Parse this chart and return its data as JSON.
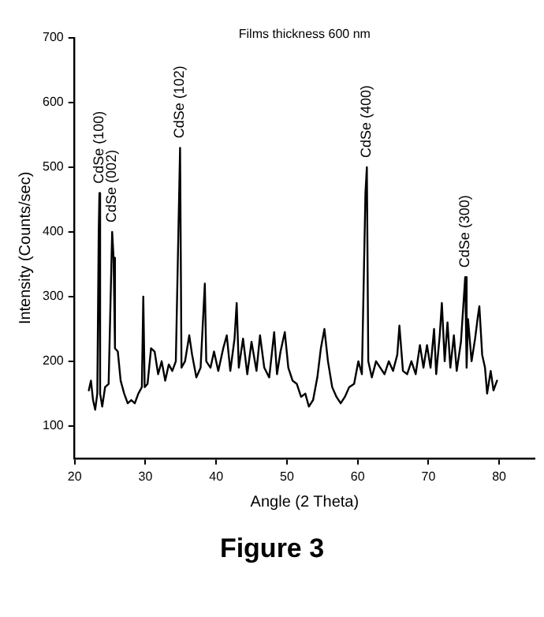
{
  "chart_data": {
    "type": "line",
    "title": "Films thickness 600 nm",
    "xlabel": "Angle (2 Theta)",
    "ylabel": "Intensity (Counts/sec)",
    "series": [
      {
        "color": "#000000",
        "x": [
          22,
          22.3,
          22.6,
          22.9,
          23.2,
          23.4,
          23.5,
          23.6,
          23.9,
          24.3,
          24.8,
          25.3,
          25.5,
          25.7,
          26.1,
          26.5,
          27,
          27.5,
          28,
          28.5,
          29,
          29.5,
          29.7,
          29.9,
          30.3,
          30.8,
          31.3,
          31.8,
          32.3,
          32.8,
          33.3,
          33.8,
          34.3,
          34.9,
          35.1,
          35.6,
          36.2,
          36.6,
          37.2,
          37.8,
          38.4,
          38.6,
          39.2,
          39.7,
          40.3,
          41,
          41.5,
          42,
          42.6,
          42.9,
          43.2,
          43.8,
          44.4,
          45,
          45.7,
          46.2,
          46.8,
          47.5,
          48.2,
          48.6,
          49.1,
          49.7,
          50.2,
          50.8,
          51.4,
          52,
          52.6,
          53.1,
          53.7,
          54.3,
          54.8,
          55.3,
          55.8,
          56.4,
          57,
          57.6,
          58.2,
          58.8,
          59.5,
          60.1,
          60.6,
          61.1,
          61.3,
          61.5,
          62,
          62.6,
          63.2,
          63.8,
          64.4,
          65,
          65.6,
          65.9,
          66.4,
          67,
          67.6,
          68.2,
          68.8,
          69.3,
          69.8,
          70.3,
          70.8,
          71.1,
          71.6,
          71.9,
          72.3,
          72.7,
          73.1,
          73.6,
          74,
          74.6,
          75.2,
          75.4,
          75.6,
          76.1,
          76.6,
          77,
          77.2,
          77.6,
          78,
          78.3,
          78.8,
          79.2,
          79.7
        ],
        "values": [
          155,
          170,
          140,
          125,
          150,
          400,
          460,
          150,
          130,
          160,
          165,
          400,
          360,
          220,
          215,
          170,
          150,
          135,
          140,
          135,
          150,
          160,
          300,
          160,
          165,
          220,
          215,
          180,
          200,
          170,
          195,
          185,
          200,
          530,
          190,
          200,
          240,
          210,
          175,
          190,
          320,
          200,
          190,
          215,
          185,
          220,
          240,
          185,
          235,
          290,
          190,
          235,
          180,
          230,
          185,
          240,
          190,
          175,
          245,
          180,
          215,
          245,
          190,
          170,
          165,
          145,
          150,
          130,
          140,
          175,
          220,
          250,
          200,
          160,
          145,
          135,
          145,
          160,
          165,
          200,
          180,
          460,
          500,
          200,
          175,
          200,
          190,
          180,
          200,
          185,
          210,
          255,
          185,
          180,
          200,
          180,
          225,
          190,
          225,
          190,
          250,
          180,
          240,
          290,
          200,
          260,
          190,
          240,
          185,
          230,
          330,
          190,
          265,
          200,
          235,
          270,
          285,
          210,
          190,
          150,
          185,
          155,
          170
        ]
      }
    ],
    "xlim": [
      20,
      85
    ],
    "xticks": [
      20,
      30,
      40,
      50,
      60,
      70,
      80
    ],
    "ylim": [
      50,
      700
    ],
    "yticks": [
      100,
      200,
      300,
      400,
      500,
      600,
      700
    ],
    "grid": false,
    "legend": false,
    "marker": "none",
    "line_style": "solid",
    "annotations": [
      {
        "text": "CdSe (100)",
        "x": 23.5,
        "y": 460
      },
      {
        "text": "CdSe (002)",
        "x": 25.3,
        "y": 400
      },
      {
        "text": "CdSe (102)",
        "x": 34.9,
        "y": 530
      },
      {
        "text": "CdSe (400)",
        "x": 61.3,
        "y": 500
      },
      {
        "text": "CdSe (300)",
        "x": 75.2,
        "y": 330
      },
      "Figure 3"
    ]
  }
}
